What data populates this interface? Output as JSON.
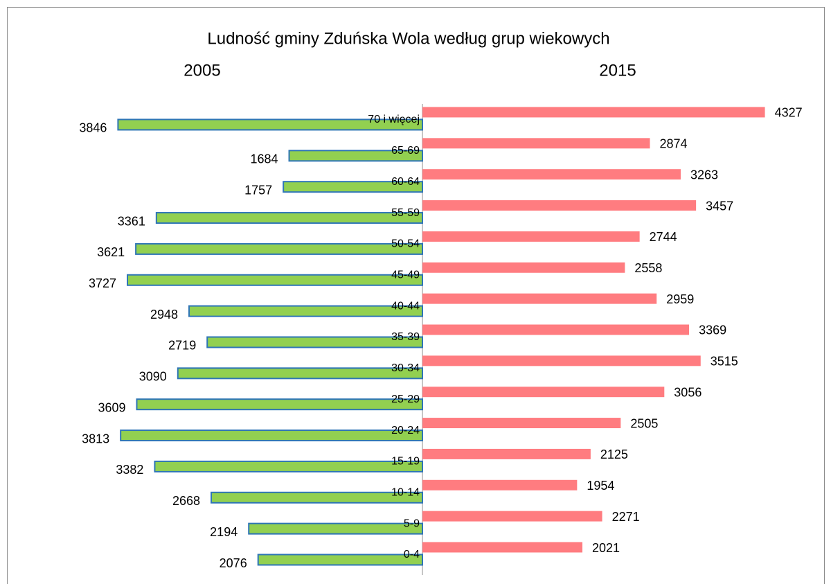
{
  "chart_data": {
    "type": "butterfly-bar",
    "title": "Ludność gminy Zduńska Wola według grup wiekowych",
    "categories": [
      "0-4",
      "5-9",
      "10-14",
      "15-19",
      "20-24",
      "25-29",
      "30-34",
      "35-39",
      "40-44",
      "45-49",
      "50-54",
      "55-59",
      "60-64",
      "65-69",
      "70 i więcej"
    ],
    "series": [
      {
        "name": "2005",
        "color": "#92d050",
        "edge_color": "#2e75b6",
        "side": "left",
        "values": [
          2076,
          2194,
          2668,
          3382,
          3813,
          3609,
          3090,
          2719,
          2948,
          3727,
          3621,
          3361,
          1757,
          1684,
          3846
        ]
      },
      {
        "name": "2015",
        "color": "#ff7c80",
        "side": "right",
        "values": [
          2021,
          2271,
          1954,
          2125,
          2505,
          3056,
          3515,
          3369,
          2959,
          2558,
          2744,
          3457,
          3263,
          2874,
          4327
        ]
      }
    ],
    "xlim": [
      0,
      5000
    ]
  }
}
